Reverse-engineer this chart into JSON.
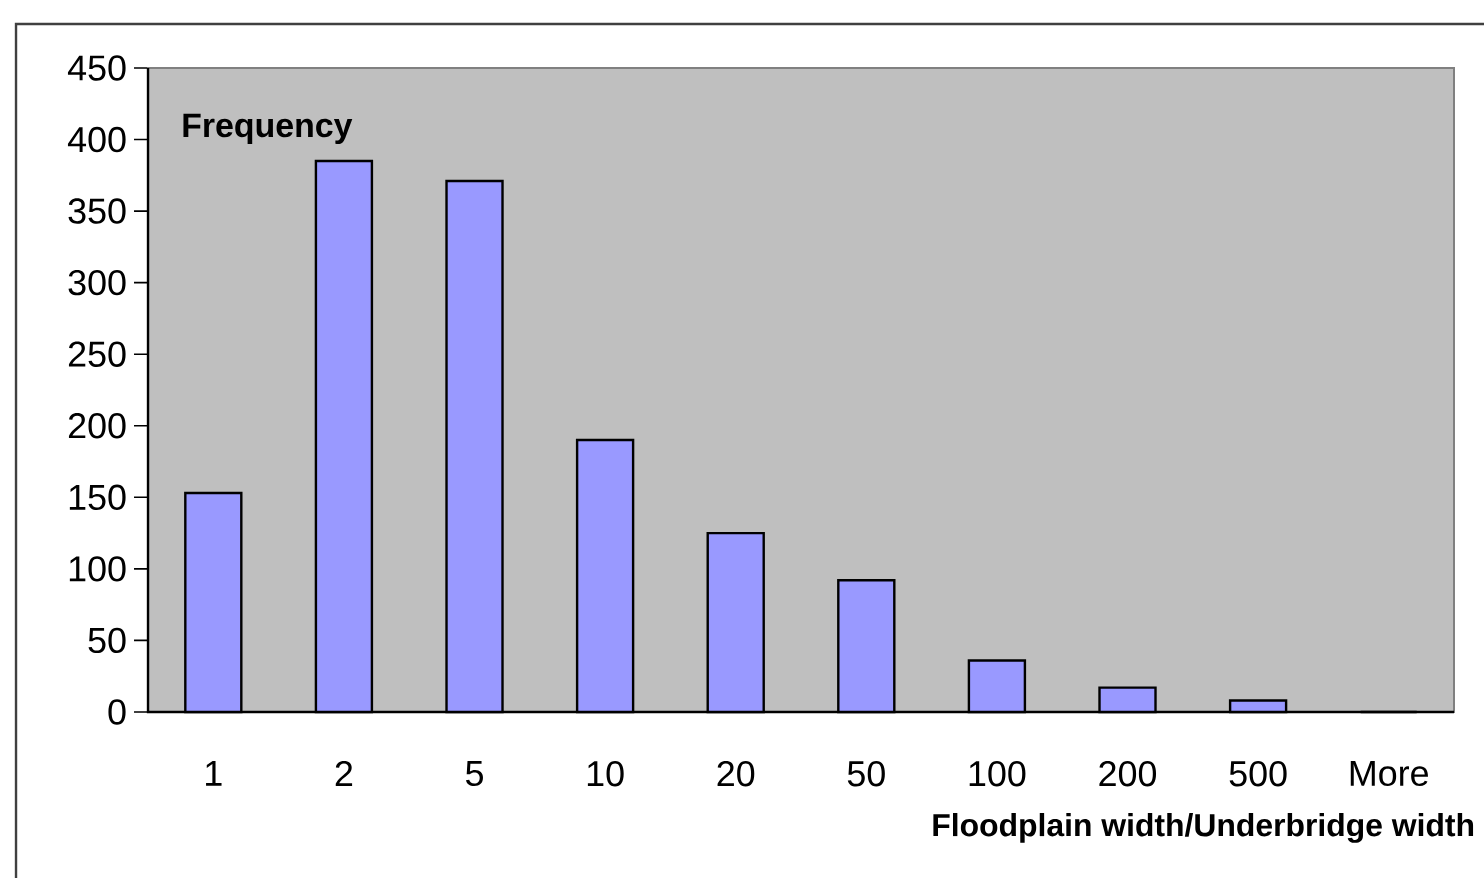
{
  "chart_data": {
    "type": "bar",
    "categories": [
      "1",
      "2",
      "5",
      "10",
      "20",
      "50",
      "100",
      "200",
      "500",
      "More"
    ],
    "values": [
      153,
      385,
      371,
      190,
      125,
      92,
      36,
      17,
      8,
      0
    ],
    "color": "#9999ff",
    "xlabel": "Floodplain width/Underbridge width",
    "ylabel": "Frequency",
    "ylim": [
      0,
      450
    ],
    "yticks": [
      0,
      50,
      100,
      150,
      200,
      250,
      300,
      350,
      400,
      450
    ]
  }
}
